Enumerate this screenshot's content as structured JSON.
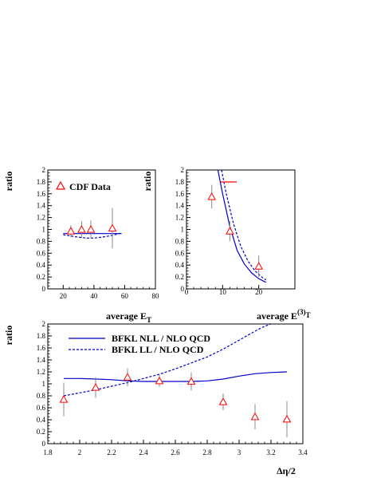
{
  "chart_data": [
    {
      "type": "line",
      "panel": "top-left",
      "xlabel": "average E",
      "xlabel_sub": "T",
      "ylabel": "ratio",
      "xlim": [
        10,
        80
      ],
      "ylim": [
        0,
        2
      ],
      "xticks": [
        20,
        40,
        60,
        80
      ],
      "yticks": [
        0,
        0.2,
        0.4,
        0.6,
        0.8,
        1,
        1.2,
        1.4,
        1.6,
        1.8,
        2
      ],
      "ytick_labels": [
        "0",
        "0.2",
        "0.4",
        "0.6",
        "0.8",
        "1",
        "1.2",
        "1.4",
        "1.6",
        "1.8",
        "2"
      ],
      "legend": [
        {
          "label": "CDF Data",
          "marker": "triangle",
          "color": "#ff0000"
        }
      ],
      "series": [
        {
          "style": "solid",
          "color": "#0000cc",
          "x": [
            20,
            30,
            40,
            50,
            58
          ],
          "y": [
            0.93,
            0.93,
            0.93,
            0.93,
            0.93
          ]
        },
        {
          "style": "dashed",
          "color": "#0000cc",
          "x": [
            20,
            25,
            30,
            35,
            40,
            45,
            50,
            55,
            58
          ],
          "y": [
            0.91,
            0.89,
            0.87,
            0.855,
            0.855,
            0.87,
            0.89,
            0.92,
            0.94
          ]
        }
      ],
      "points": {
        "x": [
          25,
          32,
          38,
          52
        ],
        "y": [
          0.97,
          1.0,
          1.0,
          1.02
        ],
        "err": [
          0.1,
          0.14,
          0.15,
          0.34
        ]
      }
    },
    {
      "type": "line",
      "panel": "top-right",
      "xlabel": "average E",
      "xlabel_sup": "(3)",
      "xlabel_sub": "T",
      "ylabel": "ratio",
      "xlim": [
        0,
        30
      ],
      "ylim": [
        0,
        2
      ],
      "xticks": [
        0,
        10,
        20
      ],
      "yticks": [
        0,
        0.2,
        0.4,
        0.6,
        0.8,
        1,
        1.2,
        1.4,
        1.6,
        1.8,
        2
      ],
      "ytick_labels": [
        "0",
        "0.2",
        "0.4",
        "0.6",
        "0.8",
        "1",
        "1.2",
        "1.4",
        "1.6",
        "1.8",
        "2"
      ],
      "series": [
        {
          "style": "solid",
          "color": "#0000cc",
          "x": [
            8.7,
            10,
            12,
            14,
            16,
            18,
            20,
            22
          ],
          "y": [
            2.0,
            1.6,
            1.05,
            0.65,
            0.42,
            0.27,
            0.17,
            0.11
          ]
        },
        {
          "style": "dashed",
          "color": "#0000cc",
          "x": [
            9.7,
            11,
            13,
            15,
            17,
            19,
            21,
            22
          ],
          "y": [
            2.0,
            1.6,
            1.1,
            0.72,
            0.47,
            0.3,
            0.19,
            0.15
          ]
        }
      ],
      "points": {
        "x": [
          7,
          12,
          20
        ],
        "y": [
          1.55,
          0.97,
          0.38
        ],
        "err": [
          0.2,
          0.17,
          0.18
        ]
      }
    },
    {
      "type": "line",
      "panel": "bottom",
      "xlabel": "Δη/2",
      "ylabel": "ratio",
      "xlim": [
        1.8,
        3.4
      ],
      "ylim": [
        0,
        2
      ],
      "xticks": [
        1.8,
        2,
        2.2,
        2.4,
        2.6,
        2.8,
        3,
        3.2,
        3.4
      ],
      "xtick_labels": [
        "1.8",
        "2",
        "2.2",
        "2.4",
        "2.6",
        "2.8",
        "3",
        "3.2",
        "3.4"
      ],
      "yticks": [
        0,
        0.2,
        0.4,
        0.6,
        0.8,
        1,
        1.2,
        1.4,
        1.6,
        1.8,
        2
      ],
      "ytick_labels": [
        "0",
        "0.2",
        "0.4",
        "0.6",
        "0.8",
        "1",
        "1.2",
        "1.4",
        "1.6",
        "1.8",
        "2"
      ],
      "legend": [
        {
          "label": "BFKL NLL / NLO QCD",
          "style": "solid",
          "color": "#0000cc"
        },
        {
          "label": "BFKL LL / NLO QCD",
          "style": "dashed",
          "color": "#0000cc"
        }
      ],
      "series": [
        {
          "style": "solid",
          "color": "#0000cc",
          "x": [
            1.9,
            2.0,
            2.1,
            2.2,
            2.3,
            2.4,
            2.5,
            2.6,
            2.7,
            2.8,
            2.9,
            3.0,
            3.1,
            3.2,
            3.3
          ],
          "y": [
            1.09,
            1.09,
            1.08,
            1.07,
            1.05,
            1.04,
            1.04,
            1.04,
            1.04,
            1.05,
            1.08,
            1.13,
            1.17,
            1.19,
            1.2
          ]
        },
        {
          "style": "dashed",
          "color": "#0000cc",
          "x": [
            1.9,
            2.0,
            2.1,
            2.2,
            2.3,
            2.4,
            2.5,
            2.6,
            2.7,
            2.8,
            2.9,
            3.0,
            3.1,
            3.15,
            3.2,
            3.25
          ],
          "y": [
            0.8,
            0.85,
            0.9,
            0.96,
            1.02,
            1.09,
            1.16,
            1.25,
            1.35,
            1.45,
            1.58,
            1.73,
            1.88,
            1.95,
            2.0,
            2.02
          ]
        }
      ],
      "points": {
        "x": [
          1.9,
          2.1,
          2.3,
          2.5,
          2.7,
          2.9,
          3.1,
          3.3
        ],
        "y": [
          0.74,
          0.94,
          1.11,
          1.05,
          1.04,
          0.7,
          0.45,
          0.41
        ],
        "err": [
          0.28,
          0.17,
          0.15,
          0.1,
          0.15,
          0.14,
          0.21,
          0.3
        ]
      }
    }
  ]
}
